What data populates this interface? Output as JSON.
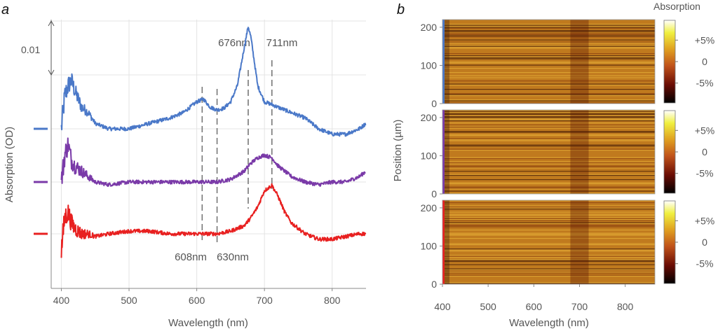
{
  "panel_a": {
    "letter": "a",
    "scale_label": "0.01",
    "chart_data": {
      "type": "line",
      "xlabel": "Wavelength (nm)",
      "ylabel": "Absorption (OD)",
      "xlim": [
        385,
        850
      ],
      "xticks": [
        400,
        500,
        600,
        700,
        800
      ],
      "y_unit": "OD",
      "scale_bar_od": 0.01,
      "grid": true,
      "series": [
        {
          "color": "#4a78c8",
          "x": [
            400,
            405,
            410,
            415,
            420,
            430,
            440,
            450,
            470,
            500,
            530,
            560,
            580,
            600,
            610,
            620,
            630,
            640,
            650,
            660,
            670,
            676,
            680,
            690,
            700,
            711,
            720,
            740,
            760,
            780,
            800,
            820,
            840,
            850
          ],
          "y": [
            0.0,
            0.006,
            0.008,
            0.009,
            0.007,
            0.004,
            0.003,
            0.001,
            0.0,
            0.0,
            0.001,
            0.002,
            0.003,
            0.005,
            0.0055,
            0.004,
            0.0035,
            0.0038,
            0.005,
            0.008,
            0.015,
            0.019,
            0.017,
            0.008,
            0.005,
            0.0045,
            0.004,
            0.003,
            0.002,
            0.0,
            -0.001,
            -0.001,
            0.0,
            0.001
          ]
        },
        {
          "color": "#7a3aa8",
          "x": [
            400,
            405,
            410,
            415,
            420,
            430,
            440,
            450,
            470,
            500,
            530,
            560,
            600,
            630,
            650,
            670,
            680,
            690,
            700,
            711,
            720,
            740,
            760,
            780,
            800,
            820,
            840,
            850
          ],
          "y": [
            0.0,
            0.005,
            0.007,
            0.004,
            0.003,
            0.002,
            0.001,
            0.0,
            -0.0005,
            0.0,
            0.0,
            0.0,
            0.0,
            0.0,
            0.0005,
            0.002,
            0.0035,
            0.0045,
            0.005,
            0.0045,
            0.003,
            0.001,
            0.0,
            -0.0005,
            0.0,
            0.0,
            0.001,
            0.002
          ]
        },
        {
          "color": "#e82020",
          "x": [
            400,
            405,
            410,
            415,
            420,
            430,
            440,
            450,
            470,
            500,
            530,
            560,
            600,
            630,
            650,
            670,
            680,
            690,
            700,
            711,
            720,
            730,
            740,
            760,
            780,
            800,
            820,
            840,
            850
          ],
          "y": [
            -0.003,
            0.003,
            0.004,
            0.002,
            0.001,
            0.0,
            0.0,
            -0.0005,
            0.0,
            0.0005,
            0.0005,
            0.0,
            0.0,
            0.0,
            0.0005,
            0.0015,
            0.003,
            0.005,
            0.008,
            0.009,
            0.007,
            0.004,
            0.002,
            0.0,
            -0.001,
            -0.001,
            -0.0005,
            0.0,
            0.0
          ]
        }
      ],
      "markers": [
        {
          "x": 608,
          "label": "608nm"
        },
        {
          "x": 630,
          "label": "630nm"
        },
        {
          "x": 676,
          "label": "676nm"
        },
        {
          "x": 711,
          "label": "711nm"
        }
      ]
    }
  },
  "panel_b": {
    "letter": "b",
    "chart_data": {
      "type": "heatmap",
      "xlabel": "Wavelength (nm)",
      "ylabel": "Position (µm)",
      "colorbar_title": "Absorption",
      "xlim": [
        400,
        865
      ],
      "xticks": [
        400,
        500,
        600,
        700,
        800
      ],
      "ylim": [
        0,
        220
      ],
      "yticks": [
        0,
        100,
        200
      ],
      "colorbar_ticks": [
        "+5%",
        "0",
        "-5%"
      ],
      "dark_band_nm": [
        680,
        720
      ],
      "panels": [
        {
          "color": "#4a78c8"
        },
        {
          "color": "#7a3aa8"
        },
        {
          "color": "#e82020"
        }
      ]
    }
  }
}
